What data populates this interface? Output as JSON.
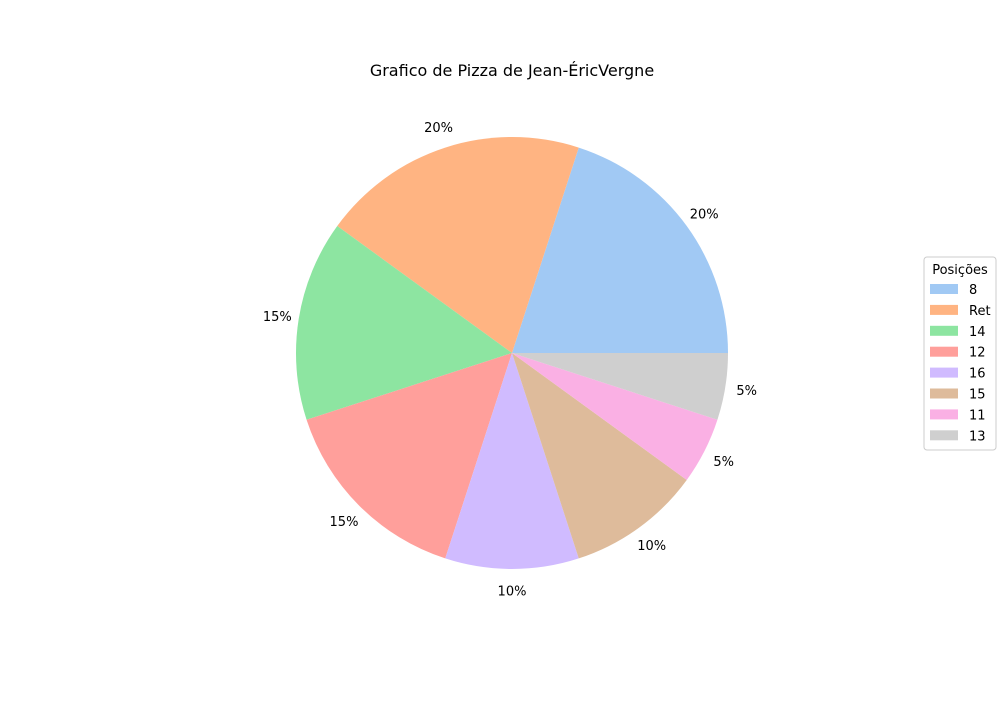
{
  "chart_data": {
    "type": "pie",
    "title": "Grafico de Pizza de Jean-ÉricVergne",
    "categories": [
      "8",
      "Ret",
      "14",
      "12",
      "16",
      "15",
      "11",
      "13"
    ],
    "values": [
      20,
      20,
      15,
      15,
      10,
      10,
      5,
      5
    ],
    "percent_labels": [
      "20%",
      "20%",
      "15%",
      "15%",
      "10%",
      "10%",
      "5%",
      "5%"
    ],
    "colors": [
      "#a1c9f4",
      "#ffb482",
      "#8de5a1",
      "#ff9f9b",
      "#d0bbff",
      "#debb9b",
      "#fab0e4",
      "#cfcfcf"
    ],
    "start_angle_deg": 0,
    "direction": "counterclockwise",
    "legend": {
      "title": "Posições",
      "placement": "right"
    }
  }
}
